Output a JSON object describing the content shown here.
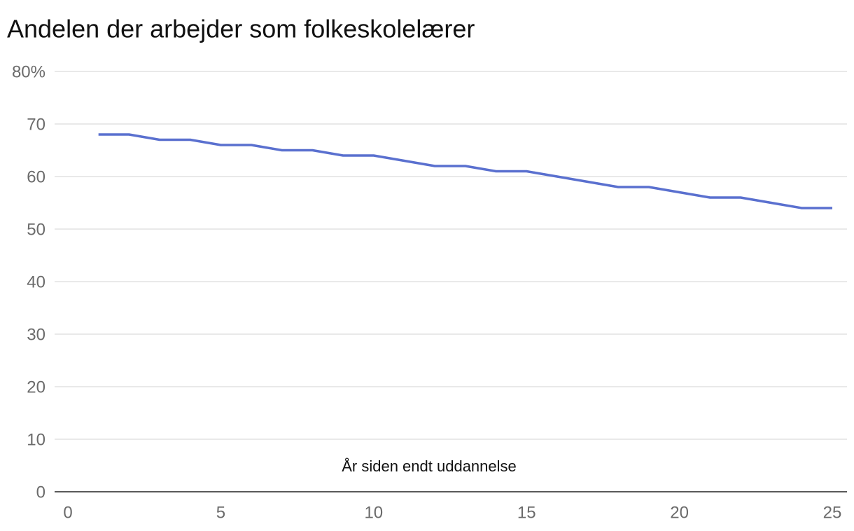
{
  "chart_data": {
    "type": "line",
    "title": "Andelen der arbejder som folkeskolelærer",
    "x_label": "År siden endt uddannelse",
    "x": [
      1,
      2,
      3,
      4,
      5,
      6,
      7,
      8,
      9,
      10,
      11,
      12,
      13,
      14,
      15,
      16,
      17,
      18,
      19,
      20,
      21,
      22,
      23,
      24,
      25
    ],
    "series": [
      {
        "color": "#5a70cf",
        "values": [
          68,
          68,
          67,
          67,
          66,
          66,
          65,
          65,
          64,
          64,
          63,
          62,
          62,
          61,
          61,
          60,
          59,
          58,
          58,
          57,
          56,
          56,
          55,
          54,
          54
        ]
      }
    ],
    "xlim": [
      0,
      25
    ],
    "xticks": [
      0,
      5,
      10,
      15,
      20,
      25
    ],
    "ylim": [
      0,
      80
    ],
    "yticks": [
      0,
      10,
      20,
      30,
      40,
      50,
      60,
      70,
      {
        "value": 80,
        "label": "80%"
      }
    ],
    "grid": true
  }
}
